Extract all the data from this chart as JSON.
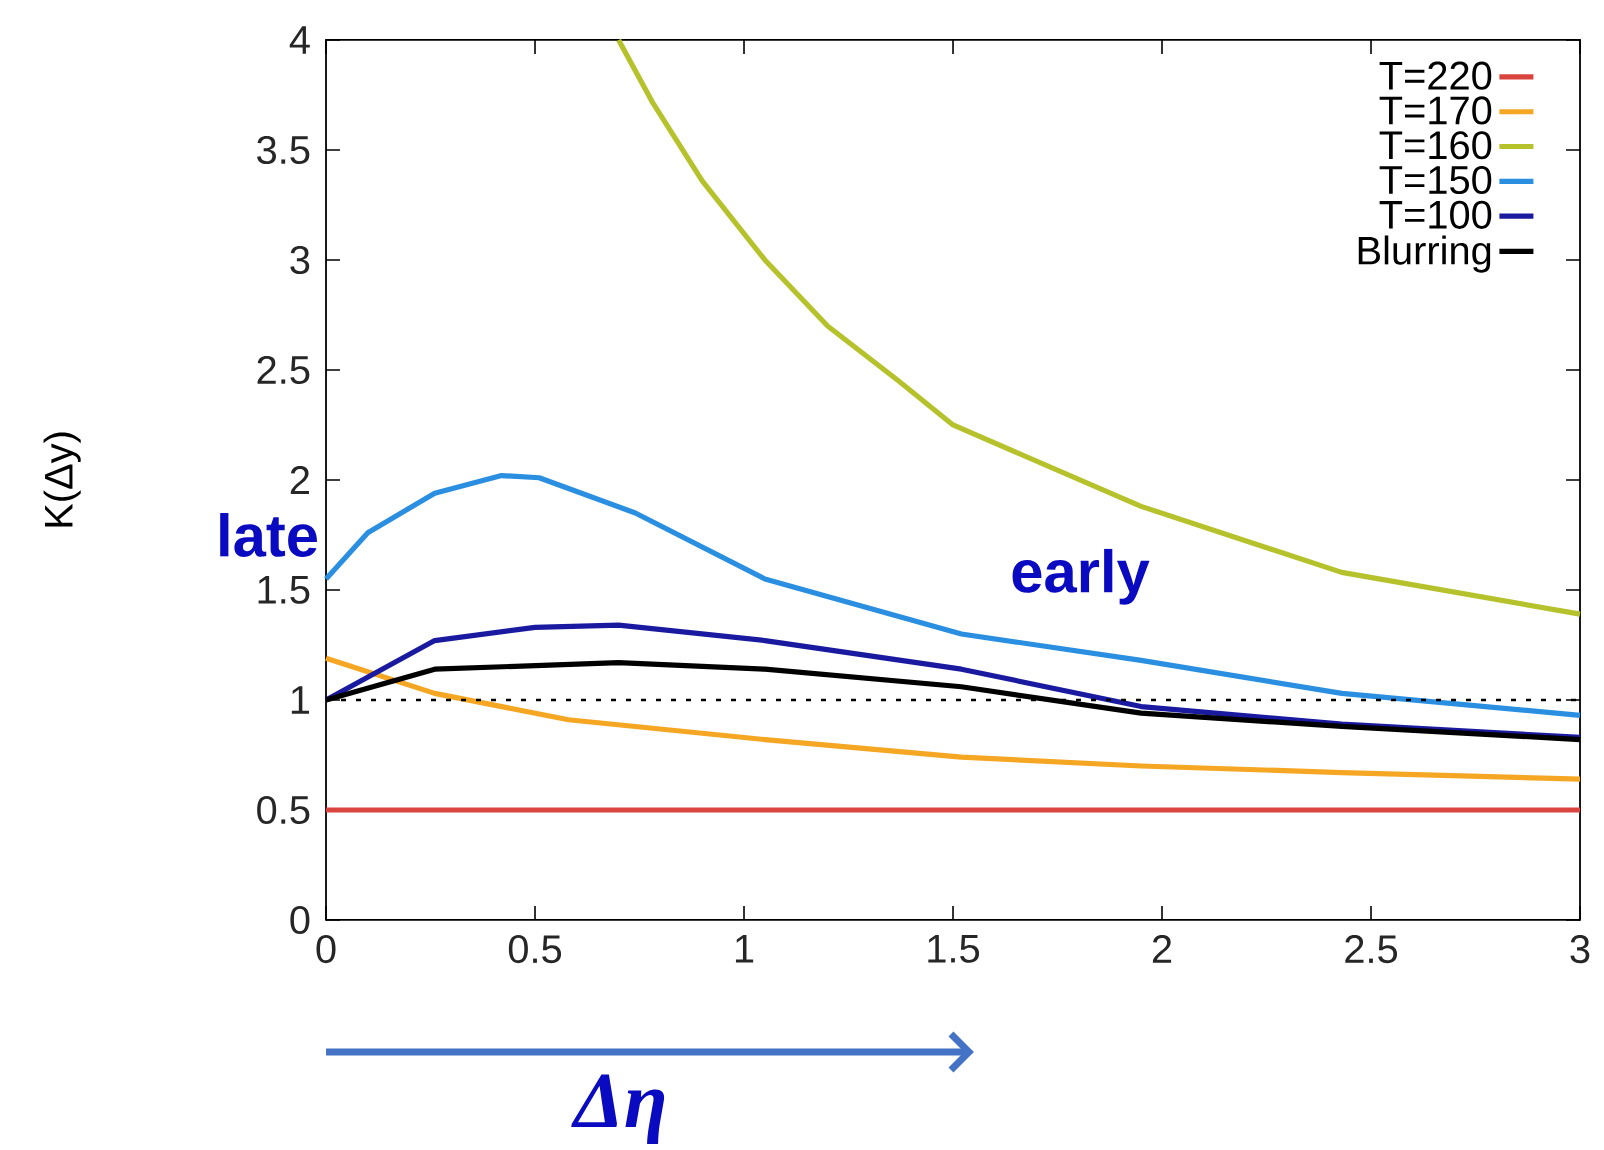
{
  "chart_data": {
    "type": "line",
    "xlabel": "Δη",
    "ylabel": "K(Δy)",
    "xlim": [
      0,
      3
    ],
    "ylim": [
      0,
      4
    ],
    "xticks": [
      0,
      0.5,
      1,
      1.5,
      2,
      2.5,
      3
    ],
    "yticks": [
      0,
      0.5,
      1,
      1.5,
      2,
      2.5,
      3,
      3.5,
      4
    ],
    "grid": false,
    "legend": "top right",
    "marker": "none",
    "line_style": "solid",
    "ref_lines": [
      {
        "axis": "y",
        "value": 1,
        "color": "#000000",
        "line_style": "dotted"
      }
    ],
    "annotations": [
      "late",
      "early"
    ],
    "series": [
      {
        "name": "T=220",
        "color": "#d9443f",
        "x": [
          0,
          3
        ],
        "values": [
          0.5,
          0.5
        ]
      },
      {
        "name": "T=170",
        "color": "#f5a623",
        "x": [
          0,
          0.26,
          0.58,
          1.05,
          1.52,
          1.95,
          2.43,
          3
        ],
        "values": [
          1.19,
          1.03,
          0.91,
          0.82,
          0.74,
          0.7,
          0.67,
          0.64
        ]
      },
      {
        "name": "T=160",
        "color": "#b5c22b",
        "x": [
          0.7,
          0.78,
          0.9,
          1.05,
          1.2,
          1.37,
          1.5,
          1.95,
          2.43,
          3
        ],
        "values": [
          4.0,
          3.72,
          3.36,
          3.0,
          2.7,
          2.45,
          2.25,
          1.88,
          1.58,
          1.39
        ]
      },
      {
        "name": "T=150",
        "color": "#2a8fe0",
        "x": [
          0,
          0.1,
          0.26,
          0.42,
          0.51,
          0.74,
          1.05,
          1.52,
          1.95,
          2.43,
          3
        ],
        "values": [
          1.55,
          1.76,
          1.94,
          2.02,
          2.01,
          1.85,
          1.55,
          1.3,
          1.18,
          1.03,
          0.93
        ]
      },
      {
        "name": "T=100",
        "color": "#1a1aa0",
        "x": [
          0,
          0.26,
          0.5,
          0.7,
          1.05,
          1.52,
          1.95,
          2.43,
          3
        ],
        "values": [
          1.0,
          1.27,
          1.33,
          1.34,
          1.27,
          1.14,
          0.97,
          0.89,
          0.83
        ]
      },
      {
        "name": "Blurring",
        "color": "#000000",
        "x": [
          0,
          0.26,
          0.7,
          1.05,
          1.52,
          1.95,
          2.43,
          3
        ],
        "values": [
          1.0,
          1.14,
          1.17,
          1.14,
          1.06,
          0.94,
          0.88,
          0.82
        ]
      }
    ]
  }
}
